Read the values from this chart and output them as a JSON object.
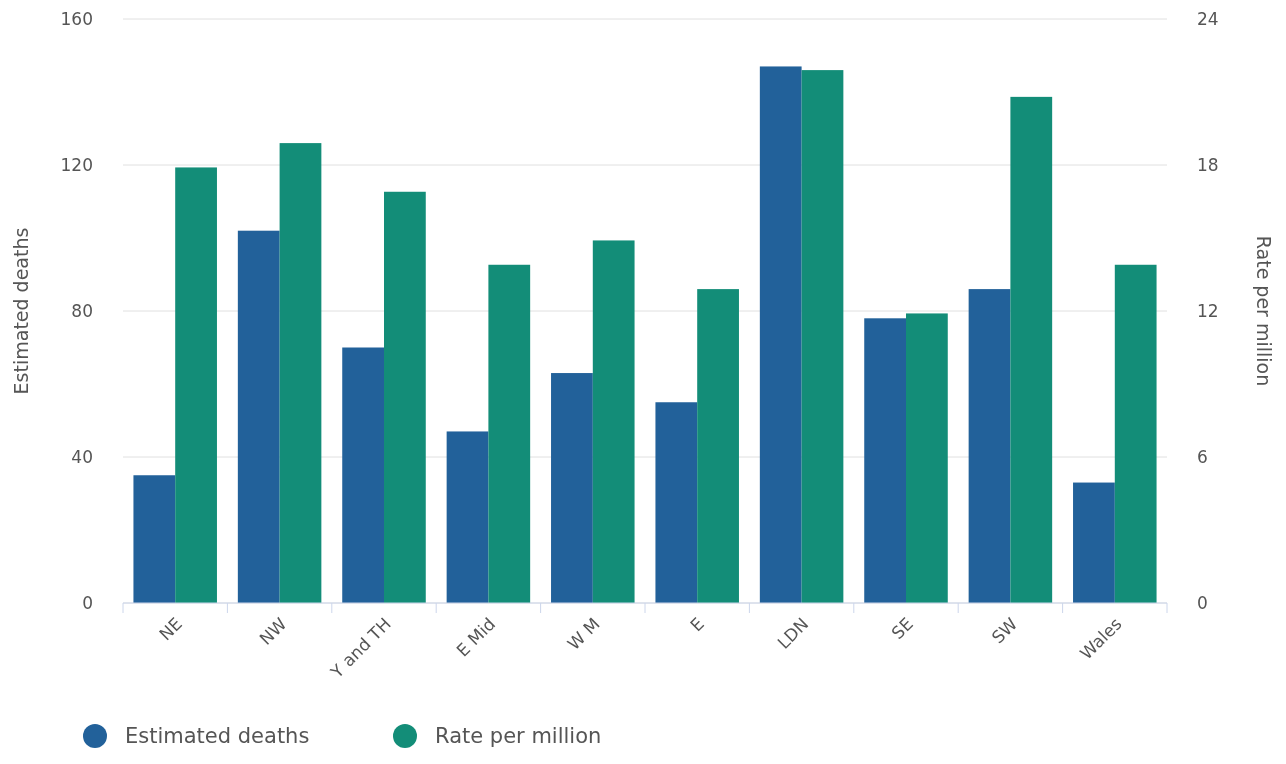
{
  "chart_data": {
    "type": "bar",
    "categories": [
      "NE",
      "NW",
      "Y and TH",
      "E Mid",
      "W M",
      "E",
      "LDN",
      "SE",
      "SW",
      "Wales"
    ],
    "series": [
      {
        "name": "Estimated deaths",
        "color": "#22619a",
        "values": [
          35,
          102,
          70,
          47,
          63,
          55,
          147,
          78,
          86,
          33
        ]
      },
      {
        "name": "Rate per million",
        "color": "#138d78",
        "axis": "y2",
        "values": [
          17.9,
          18.9,
          16.9,
          13.9,
          14.9,
          12.9,
          21.9,
          11.9,
          20.8,
          13.9
        ]
      }
    ],
    "ylabel": "Estimated deaths",
    "y2label": "Rate per million",
    "ylim": [
      0,
      160
    ],
    "yticks": [
      0,
      40,
      80,
      120,
      160
    ],
    "y2lim": [
      0,
      24
    ],
    "y2ticks": [
      0,
      6,
      12,
      18,
      24
    ],
    "grid": "y",
    "legend": "bottom left"
  }
}
